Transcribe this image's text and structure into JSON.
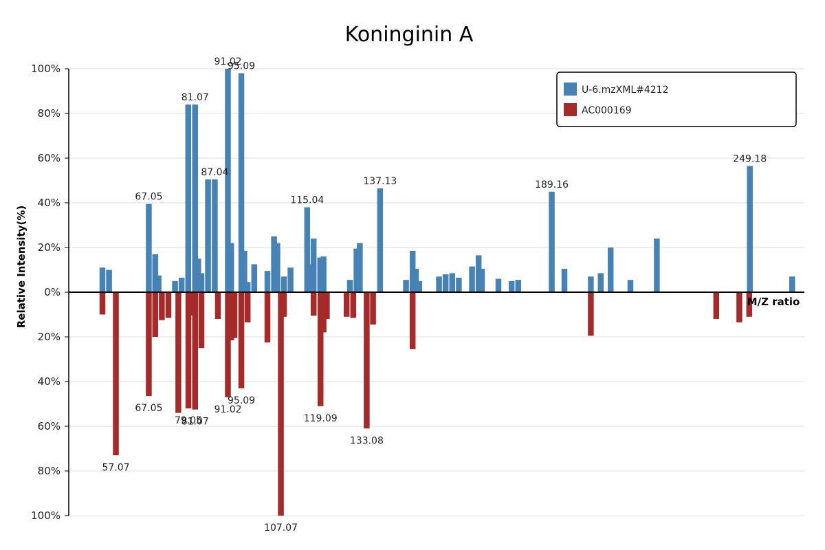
{
  "chart_data": {
    "type": "bar",
    "title": "Koninginin A",
    "xlabel": "M/Z ratio",
    "ylabel": "Relative Intensity(%)",
    "ylim": [
      -100,
      100
    ],
    "y_ticks": [
      "100%",
      "80%",
      "60%",
      "40%",
      "20%",
      "0%",
      "20%",
      "40%",
      "60%",
      "80%",
      "100%"
    ],
    "grid": true,
    "legend_position": "top-right",
    "xlim": [
      40,
      270
    ],
    "series": [
      {
        "name": "U-6.mzXML#4212",
        "color": "#4682b4",
        "points": [
          {
            "x": 53.0,
            "y": 11.0
          },
          {
            "x": 55.0,
            "y": 10.0
          },
          {
            "x": 67.05,
            "y": 39.5,
            "label": "67.05"
          },
          {
            "x": 69.0,
            "y": 17.0
          },
          {
            "x": 70.0,
            "y": 7.5
          },
          {
            "x": 75.0,
            "y": 5.0
          },
          {
            "x": 77.0,
            "y": 6.5
          },
          {
            "x": 79.0,
            "y": 84.0
          },
          {
            "x": 81.07,
            "y": 84.0,
            "label": "81.07"
          },
          {
            "x": 82.0,
            "y": 15.0
          },
          {
            "x": 83.0,
            "y": 8.5
          },
          {
            "x": 85.0,
            "y": 50.5
          },
          {
            "x": 87.04,
            "y": 50.5,
            "label": "87.04"
          },
          {
            "x": 91.02,
            "y": 100.0,
            "label": "91.02"
          },
          {
            "x": 92.0,
            "y": 22.0
          },
          {
            "x": 95.09,
            "y": 98.0,
            "label": "95.09"
          },
          {
            "x": 96.0,
            "y": 18.5
          },
          {
            "x": 97.0,
            "y": 4.5
          },
          {
            "x": 99.0,
            "y": 12.5
          },
          {
            "x": 103.0,
            "y": 9.5
          },
          {
            "x": 105.0,
            "y": 25.0
          },
          {
            "x": 106.0,
            "y": 22.0
          },
          {
            "x": 108.0,
            "y": 7.0
          },
          {
            "x": 110.0,
            "y": 11.0
          },
          {
            "x": 115.04,
            "y": 38.0,
            "label": "115.04"
          },
          {
            "x": 116.0,
            "y": 12.5
          },
          {
            "x": 117.0,
            "y": 24.0
          },
          {
            "x": 119.0,
            "y": 15.5
          },
          {
            "x": 120.0,
            "y": 16.0
          },
          {
            "x": 128.0,
            "y": 5.5
          },
          {
            "x": 130.0,
            "y": 19.5
          },
          {
            "x": 131.0,
            "y": 22.0
          },
          {
            "x": 137.13,
            "y": 46.5,
            "label": "137.13"
          },
          {
            "x": 145.0,
            "y": 5.5
          },
          {
            "x": 147.0,
            "y": 18.5
          },
          {
            "x": 148.0,
            "y": 10.5
          },
          {
            "x": 149.0,
            "y": 5.0
          },
          {
            "x": 155.0,
            "y": 7.0
          },
          {
            "x": 157.0,
            "y": 8.0
          },
          {
            "x": 159.0,
            "y": 8.5
          },
          {
            "x": 161.0,
            "y": 6.5
          },
          {
            "x": 165.0,
            "y": 11.5
          },
          {
            "x": 167.0,
            "y": 16.5
          },
          {
            "x": 168.0,
            "y": 10.5
          },
          {
            "x": 173.0,
            "y": 6.0
          },
          {
            "x": 177.0,
            "y": 5.0
          },
          {
            "x": 179.0,
            "y": 5.5
          },
          {
            "x": 189.16,
            "y": 45.0,
            "label": "189.16"
          },
          {
            "x": 193.0,
            "y": 10.5
          },
          {
            "x": 201.0,
            "y": 7.0
          },
          {
            "x": 204.0,
            "y": 8.5
          },
          {
            "x": 207.0,
            "y": 20.0
          },
          {
            "x": 213.0,
            "y": 5.5
          },
          {
            "x": 221.0,
            "y": 24.0
          },
          {
            "x": 249.18,
            "y": 56.5,
            "label": "249.18"
          },
          {
            "x": 262.0,
            "y": 7.0
          }
        ]
      },
      {
        "name": "AC000169",
        "color": "#a52a2a",
        "points": [
          {
            "x": 53.0,
            "y": -10.0
          },
          {
            "x": 57.07,
            "y": -73.0,
            "label": "57.07"
          },
          {
            "x": 67.05,
            "y": -46.5,
            "label": "67.05"
          },
          {
            "x": 69.0,
            "y": -20.0
          },
          {
            "x": 71.0,
            "y": -12.5
          },
          {
            "x": 73.0,
            "y": -11.5
          },
          {
            "x": 76.0,
            "y": -54.0
          },
          {
            "x": 79.05,
            "y": -52.0,
            "label": "79.05"
          },
          {
            "x": 80.0,
            "y": -10.5
          },
          {
            "x": 81.07,
            "y": -52.5,
            "label": "81.07"
          },
          {
            "x": 83.0,
            "y": -25.0
          },
          {
            "x": 88.0,
            "y": -12.0
          },
          {
            "x": 91.02,
            "y": -47.0,
            "label": "91.02"
          },
          {
            "x": 92.0,
            "y": -21.5
          },
          {
            "x": 93.0,
            "y": -20.5
          },
          {
            "x": 95.09,
            "y": -43.0,
            "label": "95.09"
          },
          {
            "x": 97.0,
            "y": -13.5
          },
          {
            "x": 103.0,
            "y": -22.5
          },
          {
            "x": 107.07,
            "y": -100.0,
            "label": "107.07"
          },
          {
            "x": 108.0,
            "y": -11.0
          },
          {
            "x": 117.0,
            "y": -10.5
          },
          {
            "x": 119.09,
            "y": -51.0,
            "label": "119.09"
          },
          {
            "x": 120.0,
            "y": -18.0
          },
          {
            "x": 121.0,
            "y": -12.0
          },
          {
            "x": 127.0,
            "y": -11.0
          },
          {
            "x": 129.0,
            "y": -11.5
          },
          {
            "x": 133.08,
            "y": -61.0,
            "label": "133.08"
          },
          {
            "x": 135.0,
            "y": -14.5
          },
          {
            "x": 147.0,
            "y": -25.5
          },
          {
            "x": 201.0,
            "y": -19.5
          },
          {
            "x": 239.0,
            "y": -12.0
          },
          {
            "x": 246.0,
            "y": -13.5
          },
          {
            "x": 249.0,
            "y": -11.0
          }
        ]
      }
    ]
  }
}
